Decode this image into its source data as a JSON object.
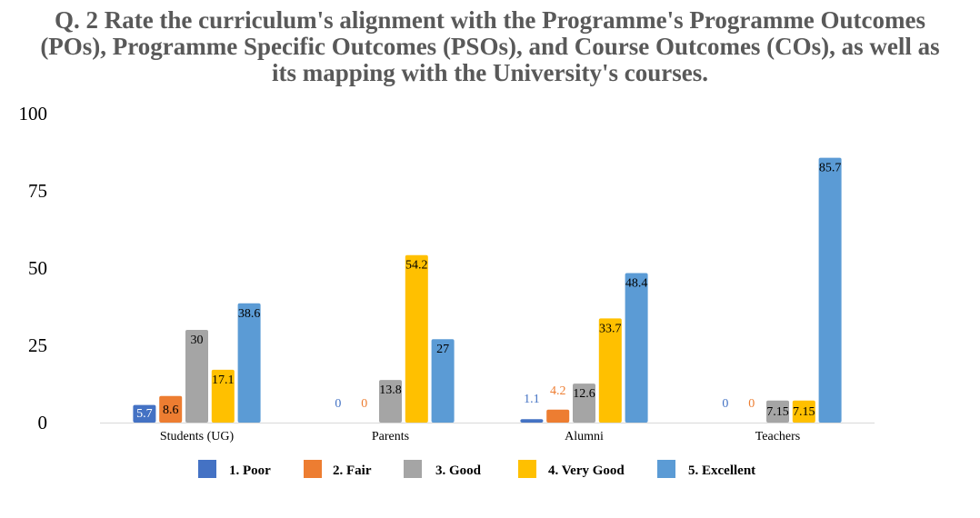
{
  "chart_data": {
    "type": "bar",
    "title_lines": [
      "Q. 2  Rate the curriculum's alignment with the Programme's Programme Outcomes",
      "(POs), Programme Specific Outcomes (PSOs), and Course Outcomes (COs), as well as",
      "its mapping with the University's courses."
    ],
    "categories": [
      "Students (UG)",
      "Parents",
      "Alumni",
      "Teachers"
    ],
    "series": [
      {
        "name": "1.  Poor",
        "color": "#4472C4",
        "values": [
          5.7,
          0,
          1.1,
          0
        ],
        "labels": [
          "5.7",
          "0",
          "1.1",
          "0"
        ]
      },
      {
        "name": "2.  Fair",
        "color": "#ED7D31",
        "values": [
          8.6,
          0,
          4.2,
          0
        ],
        "labels": [
          "8.6",
          "0",
          "4.2",
          "0"
        ]
      },
      {
        "name": "3.  Good",
        "color": "#A5A5A5",
        "values": [
          30,
          13.8,
          12.6,
          7.15
        ],
        "labels": [
          "30",
          "13.8",
          "12.6",
          "7.15"
        ]
      },
      {
        "name": "4.  Very Good",
        "color": "#FFC000",
        "values": [
          17.1,
          54.2,
          33.7,
          7.15
        ],
        "labels": [
          "17.1",
          "54.2",
          "33.7",
          "7.15"
        ]
      },
      {
        "name": "5.  Excellent",
        "color": "#5B9BD5",
        "values": [
          38.6,
          27,
          48.4,
          85.7
        ],
        "labels": [
          "38.6",
          "27",
          "48.4",
          "85.7"
        ]
      }
    ],
    "yticks": [
      "0",
      "25",
      "50",
      "75",
      "100"
    ],
    "ylim": [
      0,
      100
    ],
    "grid": false,
    "legend_position": "bottom"
  }
}
